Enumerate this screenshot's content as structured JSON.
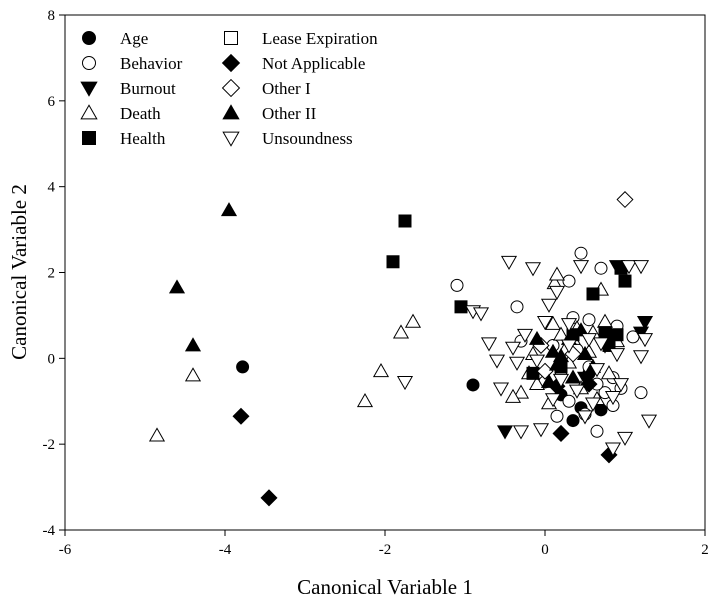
{
  "chart_data": {
    "type": "scatter",
    "xlabel": "Canonical Variable 1",
    "ylabel": "Canonical Variable 2",
    "xlim": [
      -6,
      2
    ],
    "ylim": [
      -4,
      8
    ],
    "xticks": [
      -6,
      -4,
      -2,
      0,
      2
    ],
    "yticks": [
      -4,
      -2,
      0,
      2,
      4,
      6,
      8
    ],
    "grid": false,
    "legend_placement": "top-left",
    "series": [
      {
        "name": "Age",
        "marker": "circle",
        "filled": true,
        "points": [
          [
            -3.78,
            -0.2
          ],
          [
            -0.9,
            -0.62
          ],
          [
            0.35,
            -1.45
          ],
          [
            0.45,
            -1.15
          ],
          [
            0.7,
            -1.2
          ],
          [
            0.55,
            -0.35
          ],
          [
            0.2,
            -0.85
          ]
        ]
      },
      {
        "name": "Behavior",
        "marker": "circle",
        "filled": false,
        "points": [
          [
            -1.1,
            1.7
          ],
          [
            -0.35,
            1.2
          ],
          [
            0.3,
            1.8
          ],
          [
            0.45,
            2.45
          ],
          [
            0.7,
            2.1
          ],
          [
            0.35,
            0.95
          ],
          [
            0.55,
            0.9
          ],
          [
            0.9,
            0.75
          ],
          [
            1.1,
            0.5
          ],
          [
            1.2,
            -0.8
          ],
          [
            0.65,
            -1.7
          ],
          [
            0.4,
            0.2
          ],
          [
            0.2,
            -0.3
          ],
          [
            0.75,
            -0.8
          ],
          [
            0.85,
            -0.45
          ],
          [
            0.0,
            -0.55
          ],
          [
            0.55,
            -0.2
          ],
          [
            0.3,
            -1.0
          ],
          [
            0.85,
            -1.1
          ],
          [
            0.65,
            -0.6
          ],
          [
            -0.3,
            0.4
          ],
          [
            0.15,
            -1.35
          ],
          [
            0.5,
            -1.3
          ],
          [
            0.95,
            -0.7
          ],
          [
            0.1,
            0.3
          ]
        ]
      },
      {
        "name": "Burnout",
        "marker": "triangle-down",
        "filled": true,
        "points": [
          [
            -0.5,
            -1.7
          ],
          [
            0.9,
            2.15
          ],
          [
            1.25,
            0.85
          ],
          [
            1.2,
            0.6
          ],
          [
            0.5,
            -0.45
          ],
          [
            0.75,
            0.3
          ]
        ]
      },
      {
        "name": "Death",
        "marker": "triangle-up",
        "filled": false,
        "points": [
          [
            -4.85,
            -1.8
          ],
          [
            -4.4,
            -0.4
          ],
          [
            -2.25,
            -1.0
          ],
          [
            -2.05,
            -0.3
          ],
          [
            -1.8,
            0.6
          ],
          [
            -1.65,
            0.85
          ],
          [
            0.12,
            1.75
          ],
          [
            0.15,
            1.95
          ],
          [
            0.7,
            1.6
          ],
          [
            -0.3,
            -0.8
          ],
          [
            -0.1,
            -0.6
          ],
          [
            0.1,
            0.8
          ],
          [
            0.3,
            -0.1
          ],
          [
            0.4,
            0.7
          ],
          [
            0.55,
            0.15
          ],
          [
            0.65,
            -0.95
          ],
          [
            0.75,
            0.85
          ],
          [
            0.8,
            -0.35
          ],
          [
            0.2,
            0.55
          ],
          [
            -0.15,
            0.1
          ],
          [
            0.05,
            -1.05
          ],
          [
            0.25,
            0.2
          ],
          [
            0.9,
            0.4
          ],
          [
            -0.4,
            -0.9
          ],
          [
            0.6,
            0.6
          ],
          [
            0.45,
            -0.7
          ],
          [
            -0.2,
            -0.35
          ],
          [
            0.35,
            0.45
          ]
        ]
      },
      {
        "name": "Health",
        "marker": "square",
        "filled": true,
        "points": [
          [
            -1.75,
            3.2
          ],
          [
            -1.9,
            2.25
          ],
          [
            -1.05,
            1.2
          ],
          [
            0.95,
            2.1
          ],
          [
            1.0,
            1.8
          ],
          [
            0.6,
            1.5
          ],
          [
            0.75,
            0.6
          ],
          [
            0.8,
            0.3
          ],
          [
            0.35,
            0.55
          ],
          [
            -0.15,
            -0.35
          ],
          [
            0.9,
            0.55
          ],
          [
            0.2,
            -0.2
          ]
        ]
      },
      {
        "name": "Lease Expiration",
        "marker": "square",
        "filled": false,
        "points": []
      },
      {
        "name": "Not Applicable",
        "marker": "diamond",
        "filled": true,
        "points": [
          [
            -3.8,
            -1.35
          ],
          [
            -3.45,
            -3.25
          ],
          [
            0.2,
            -1.75
          ],
          [
            0.8,
            -2.25
          ],
          [
            0.15,
            -0.65
          ],
          [
            0.55,
            -0.6
          ]
        ]
      },
      {
        "name": "Other I",
        "marker": "diamond",
        "filled": false,
        "points": [
          [
            1.0,
            3.7
          ],
          [
            0.0,
            -0.3
          ],
          [
            0.35,
            0.1
          ],
          [
            -0.05,
            0.3
          ]
        ]
      },
      {
        "name": "Other II",
        "marker": "triangle-up",
        "filled": true,
        "points": [
          [
            -3.95,
            3.45
          ],
          [
            -4.6,
            1.65
          ],
          [
            -4.4,
            0.3
          ],
          [
            0.1,
            0.15
          ],
          [
            0.2,
            0.05
          ],
          [
            0.15,
            -0.15
          ],
          [
            0.3,
            0.45
          ],
          [
            0.5,
            0.1
          ],
          [
            0.05,
            -0.55
          ],
          [
            0.6,
            -0.2
          ],
          [
            0.45,
            0.65
          ],
          [
            -0.1,
            0.45
          ],
          [
            0.35,
            -0.45
          ]
        ]
      },
      {
        "name": "Unsoundness",
        "marker": "triangle-down",
        "filled": false,
        "points": [
          [
            -1.75,
            -0.55
          ],
          [
            -0.9,
            1.1
          ],
          [
            -0.8,
            1.05
          ],
          [
            -0.45,
            2.25
          ],
          [
            -0.15,
            2.1
          ],
          [
            0.05,
            1.25
          ],
          [
            0.15,
            1.55
          ],
          [
            0.45,
            2.15
          ],
          [
            1.05,
            2.15
          ],
          [
            1.2,
            2.15
          ],
          [
            1.2,
            0.05
          ],
          [
            1.25,
            0.45
          ],
          [
            1.3,
            -1.45
          ],
          [
            1.0,
            -1.85
          ],
          [
            0.85,
            -2.1
          ],
          [
            -0.55,
            -0.7
          ],
          [
            -0.6,
            -0.05
          ],
          [
            -0.35,
            -0.1
          ],
          [
            -0.25,
            0.55
          ],
          [
            -0.05,
            -1.65
          ],
          [
            -0.3,
            -1.7
          ],
          [
            0.1,
            -0.95
          ],
          [
            0.4,
            -0.75
          ],
          [
            0.65,
            -0.25
          ],
          [
            0.7,
            0.35
          ],
          [
            0.85,
            -0.9
          ],
          [
            0.95,
            -0.6
          ],
          [
            0.55,
            0.45
          ],
          [
            0.3,
            0.3
          ],
          [
            0.0,
            0.85
          ],
          [
            -0.4,
            0.25
          ],
          [
            -0.1,
            -0.05
          ],
          [
            0.2,
            -0.5
          ],
          [
            0.5,
            -1.35
          ],
          [
            0.9,
            0.1
          ],
          [
            0.3,
            0.8
          ],
          [
            -0.7,
            0.35
          ],
          [
            0.6,
            -1.05
          ]
        ]
      }
    ]
  }
}
